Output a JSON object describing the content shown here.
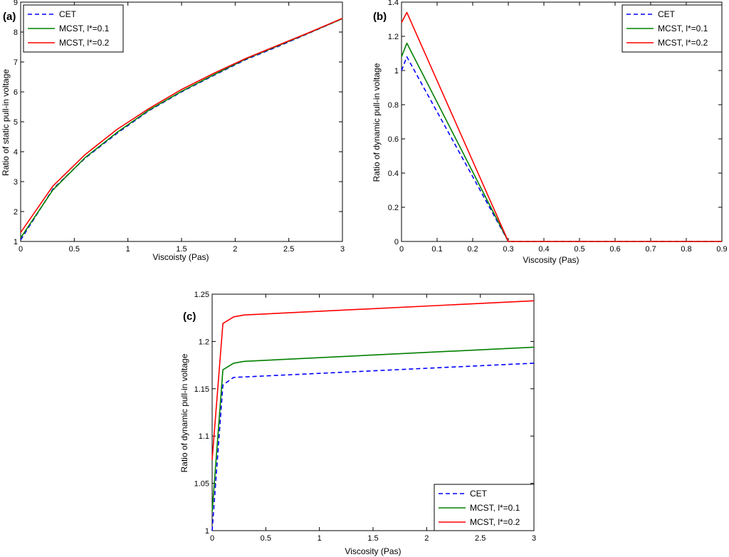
{
  "chart_data": [
    {
      "type": "line",
      "panel_label": "(a)",
      "xlabel": "Viscoisty (Pas)",
      "ylabel": "Ratio of static pull-in voltage",
      "xlim": [
        0,
        3
      ],
      "ylim": [
        1,
        9
      ],
      "xticks": [
        "0",
        "0.5",
        "1",
        "1.5",
        "2",
        "2.5",
        "3"
      ],
      "xtick_values": [
        0,
        0.5,
        1,
        1.5,
        2,
        2.5,
        3
      ],
      "yticks": [
        "1",
        "2",
        "3",
        "4",
        "5",
        "6",
        "7",
        "8",
        "9"
      ],
      "ytick_values": [
        1,
        2,
        3,
        4,
        5,
        6,
        7,
        8,
        9
      ],
      "grid": false,
      "legend_position": "top-left",
      "series": [
        {
          "name": "CET",
          "color": "#0000ff",
          "dash": true,
          "points": [
            [
              0,
              1.05
            ],
            [
              0.3,
              2.75
            ],
            [
              0.6,
              3.78
            ],
            [
              0.9,
              4.62
            ],
            [
              1.2,
              5.38
            ],
            [
              1.5,
              6.0
            ],
            [
              1.8,
              6.55
            ],
            [
              2.1,
              7.08
            ],
            [
              2.4,
              7.52
            ],
            [
              2.7,
              7.98
            ],
            [
              3.0,
              8.45
            ]
          ]
        },
        {
          "name": "MCST, l*=0.1",
          "color": "#008000",
          "dash": false,
          "points": [
            [
              0,
              1.12
            ],
            [
              0.3,
              2.72
            ],
            [
              0.6,
              3.8
            ],
            [
              0.9,
              4.65
            ],
            [
              1.2,
              5.4
            ],
            [
              1.5,
              6.02
            ],
            [
              1.8,
              6.57
            ],
            [
              2.1,
              7.1
            ],
            [
              2.4,
              7.54
            ],
            [
              2.7,
              7.99
            ],
            [
              3.0,
              8.45
            ]
          ]
        },
        {
          "name": "MCST, l*=0.2",
          "color": "#ff0000",
          "dash": false,
          "points": [
            [
              0,
              1.3
            ],
            [
              0.3,
              2.85
            ],
            [
              0.6,
              3.9
            ],
            [
              0.9,
              4.75
            ],
            [
              1.2,
              5.45
            ],
            [
              1.5,
              6.08
            ],
            [
              1.8,
              6.62
            ],
            [
              2.1,
              7.12
            ],
            [
              2.4,
              7.56
            ],
            [
              2.7,
              8.0
            ],
            [
              3.0,
              8.46
            ]
          ]
        }
      ]
    },
    {
      "type": "line",
      "panel_label": "(b)",
      "xlabel": "Viscosity (Pas)",
      "ylabel": "Ratio of dynamic pull-in voltage",
      "xlim": [
        0,
        0.9
      ],
      "ylim": [
        0,
        1.4
      ],
      "xticks": [
        "0",
        "0.1",
        "0.2",
        "0.3",
        "0.4",
        "0.5",
        "0.6",
        "0.7",
        "0.8",
        "0.9"
      ],
      "xtick_values": [
        0,
        0.1,
        0.2,
        0.3,
        0.4,
        0.5,
        0.6,
        0.7,
        0.8,
        0.9
      ],
      "yticks": [
        "0",
        "0.2",
        "0.4",
        "0.6",
        "0.8",
        "1",
        "1.2",
        "1.4"
      ],
      "ytick_values": [
        0,
        0.2,
        0.4,
        0.6,
        0.8,
        1.0,
        1.2,
        1.4
      ],
      "grid": false,
      "legend_position": "top-right",
      "series": [
        {
          "name": "CET",
          "color": "#0000ff",
          "dash": true,
          "points": [
            [
              0,
              1.0
            ],
            [
              0.015,
              1.08
            ],
            [
              0.3,
              0.0
            ],
            [
              0.9,
              0.0
            ]
          ]
        },
        {
          "name": "MCST, l*=0.1",
          "color": "#008000",
          "dash": false,
          "points": [
            [
              0,
              1.08
            ],
            [
              0.015,
              1.16
            ],
            [
              0.3,
              0.0
            ],
            [
              0.9,
              0.0
            ]
          ]
        },
        {
          "name": "MCST, l*=0.2",
          "color": "#ff0000",
          "dash": false,
          "points": [
            [
              0,
              1.28
            ],
            [
              0.015,
              1.34
            ],
            [
              0.3,
              0.0
            ],
            [
              0.9,
              0.0
            ]
          ]
        }
      ]
    },
    {
      "type": "line",
      "panel_label": "(c)",
      "xlabel": "Viscosity (Pas)",
      "ylabel": "Ratio of dynamic pull-in voltage",
      "xlim": [
        0,
        3
      ],
      "ylim": [
        1,
        1.25
      ],
      "xticks": [
        "0",
        "0.5",
        "1",
        "1.5",
        "2",
        "2.5",
        "3"
      ],
      "xtick_values": [
        0,
        0.5,
        1,
        1.5,
        2,
        2.5,
        3
      ],
      "yticks": [
        "1",
        "1.05",
        "1.1",
        "1.15",
        "1.2",
        "1.25"
      ],
      "ytick_values": [
        1.0,
        1.05,
        1.1,
        1.15,
        1.2,
        1.25
      ],
      "grid": false,
      "legend_position": "bottom-right",
      "series": [
        {
          "name": "CET",
          "color": "#0000ff",
          "dash": true,
          "points": [
            [
              0,
              1.0
            ],
            [
              0.1,
              1.154
            ],
            [
              0.2,
              1.162
            ],
            [
              3.0,
              1.177
            ]
          ]
        },
        {
          "name": "MCST, l*=0.1",
          "color": "#008000",
          "dash": false,
          "points": [
            [
              0,
              1.02
            ],
            [
              0.1,
              1.17
            ],
            [
              0.2,
              1.177
            ],
            [
              0.3,
              1.179
            ],
            [
              3.0,
              1.194
            ]
          ]
        },
        {
          "name": "MCST, l*=0.2",
          "color": "#ff0000",
          "dash": false,
          "points": [
            [
              0,
              1.075
            ],
            [
              0.1,
              1.219
            ],
            [
              0.2,
              1.226
            ],
            [
              0.3,
              1.228
            ],
            [
              3.0,
              1.243
            ]
          ]
        }
      ]
    }
  ]
}
